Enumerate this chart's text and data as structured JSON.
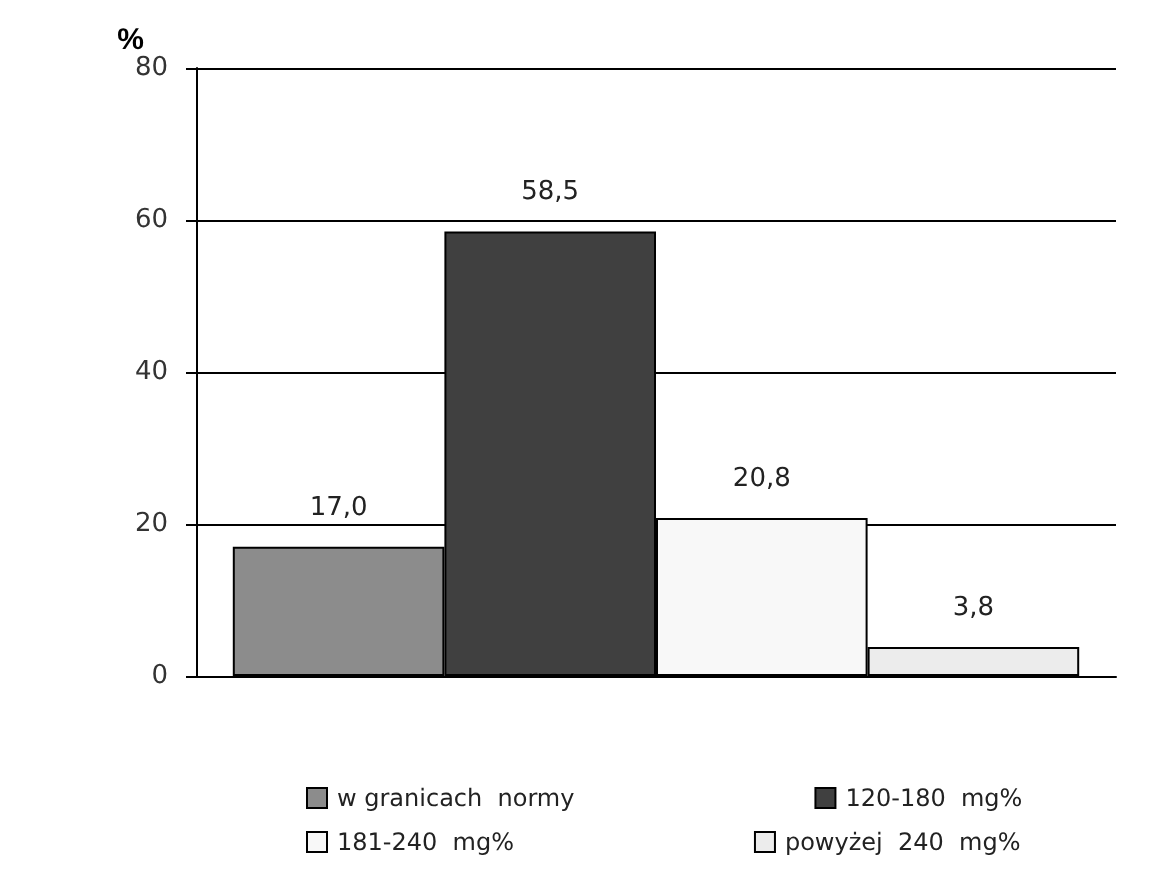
{
  "chart_data": {
    "type": "bar",
    "ylabel": "%",
    "categories": [
      null
    ],
    "series": [
      {
        "name": "w granicach  normy",
        "color": "#8c8c8c",
        "values": [
          17.0
        ],
        "value_labels": [
          "17,0"
        ]
      },
      {
        "name": "120-180  mg%",
        "color": "#404040",
        "values": [
          58.5
        ],
        "value_labels": [
          "58,5"
        ]
      },
      {
        "name": "181-240  mg%",
        "color": "#f8f8f8",
        "values": [
          20.8
        ],
        "value_labels": [
          "20,8"
        ]
      },
      {
        "name": "powyżej  240  mg%",
        "color": "#ececec",
        "values": [
          3.8
        ],
        "value_labels": [
          "3,8"
        ]
      }
    ],
    "ylim": [
      0,
      80
    ],
    "yticks": [
      0,
      20,
      40,
      60,
      80
    ],
    "grid": "y",
    "legend": "bottom"
  }
}
